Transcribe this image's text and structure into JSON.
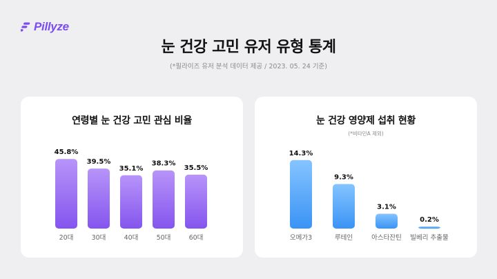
{
  "brand": {
    "name": "Pillyze",
    "color": "#7b4cf0"
  },
  "header": {
    "title": "눈 건강 고민 유저 유형 통계",
    "subtitle": "(*필라이즈 유저 분석 데이터 제공 / 2023. 05. 24 기준)"
  },
  "chart_data": [
    {
      "type": "bar",
      "title": "연령별 눈 건강 고민 관심 비율",
      "note": "",
      "categories": [
        "20대",
        "30대",
        "40대",
        "50대",
        "60대"
      ],
      "values": [
        45.8,
        39.5,
        35.1,
        38.3,
        35.5
      ],
      "value_labels": [
        "45.8%",
        "39.5%",
        "35.1%",
        "38.3%",
        "35.5%"
      ],
      "ylim": [
        0,
        50
      ],
      "grid": false,
      "colors": {
        "top": "#b794f9",
        "bottom": "#8455ee"
      }
    },
    {
      "type": "bar",
      "title": "눈 건강 영양제 섭취 현황",
      "note": "(*비타민A 제외)",
      "categories": [
        "오메가3",
        "루테인",
        "아스타잔틴",
        "빌베리 추출물"
      ],
      "values": [
        14.3,
        9.3,
        3.1,
        0.2
      ],
      "value_labels": [
        "14.3%",
        "9.3%",
        "3.1%",
        "0.2%"
      ],
      "ylim": [
        0,
        16
      ],
      "grid": false,
      "colors": {
        "top": "#85c4ff",
        "bottom": "#3a93f5"
      }
    }
  ]
}
